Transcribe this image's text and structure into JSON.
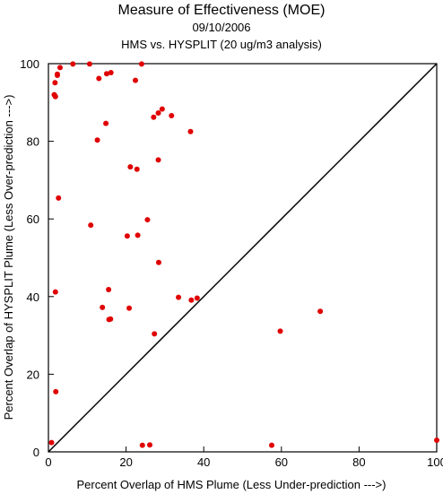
{
  "chart_data": {
    "type": "scatter",
    "title": "Measure of Effectiveness (MOE)",
    "subtitle_date": "09/10/2006",
    "subtitle": "HMS vs. HYSPLIT  (20 ug/m3 analysis)",
    "xlabel": "Percent Overlap of HMS Plume (Less Under-prediction --->)",
    "ylabel": "Percent Overlap of HYSPLIT Plume (Less Over-prediction --->)",
    "xlim": [
      0,
      100
    ],
    "ylim": [
      0,
      100
    ],
    "xticks": [
      "0",
      "20",
      "40",
      "60",
      "80",
      "100"
    ],
    "yticks": [
      "0",
      "20",
      "40",
      "60",
      "80",
      "100"
    ],
    "point_color": "#e00000",
    "reference_line": "y = x",
    "grid": false,
    "x": [
      3.0,
      6.3,
      10.6,
      1.7,
      2.3,
      2.3,
      1.5,
      1.8,
      1.7,
      13.0,
      15.0,
      16.1,
      22.4,
      24.0,
      14.8,
      12.6,
      27.1,
      28.3,
      29.3,
      31.7,
      36.6,
      21.1,
      22.8,
      28.3,
      2.6,
      10.9,
      25.5,
      20.3,
      23.0,
      28.4,
      1.8,
      15.5,
      13.9,
      20.8,
      15.6,
      16.0,
      33.5,
      36.8,
      38.3,
      27.3,
      70.0,
      59.7,
      1.9,
      0.8,
      24.2,
      26.1,
      57.5,
      100.0
    ],
    "y": [
      99.0,
      99.9,
      99.9,
      95.1,
      97.0,
      97.3,
      92.0,
      91.5,
      91.7,
      96.2,
      97.4,
      97.7,
      95.7,
      99.9,
      84.6,
      80.3,
      86.2,
      87.3,
      88.3,
      86.6,
      82.5,
      73.4,
      72.8,
      75.2,
      65.4,
      58.4,
      59.8,
      55.6,
      55.8,
      48.8,
      41.2,
      41.8,
      37.2,
      37.0,
      34.1,
      34.2,
      39.8,
      39.1,
      39.6,
      30.4,
      36.2,
      31.1,
      15.5,
      2.4,
      1.7,
      1.8,
      1.7,
      3.0
    ]
  }
}
